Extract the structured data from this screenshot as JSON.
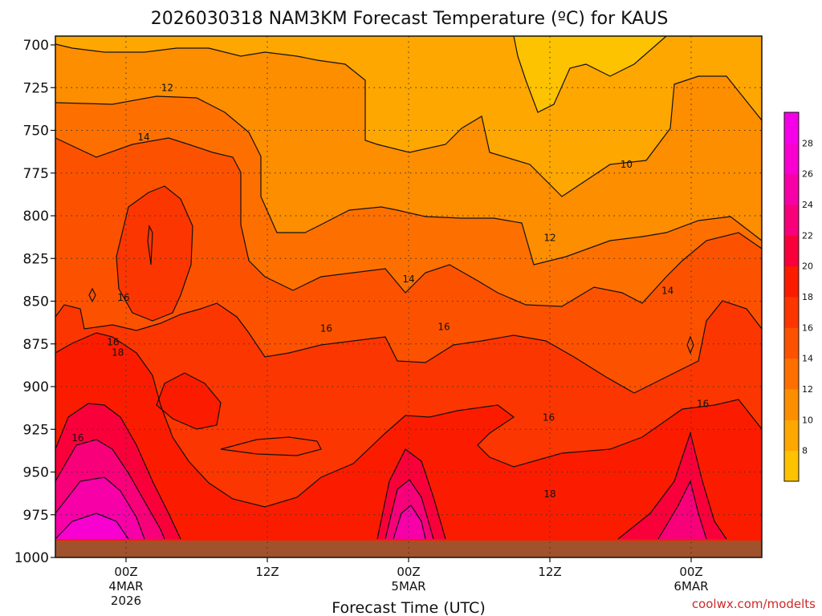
{
  "chart_data": {
    "type": "heatmap",
    "title": "2026030318 NAM3KM Forecast Temperature (ºC) for KAUS",
    "xlabel": "Forecast Time (UTC)",
    "ylabel": "",
    "credit": "coolwx.com/modelts",
    "y_ticks": [
      "700",
      "725",
      "750",
      "775",
      "800",
      "825",
      "850",
      "875",
      "900",
      "925",
      "950",
      "975",
      "1000"
    ],
    "y_range_hpa": [
      700,
      1000
    ],
    "x_range_hours": [
      -6,
      54
    ],
    "x_ticks": [
      {
        "hour": 0,
        "lines": [
          "00Z",
          "4MAR",
          "2026"
        ]
      },
      {
        "hour": 12,
        "lines": [
          "12Z"
        ]
      },
      {
        "hour": 24,
        "lines": [
          "00Z",
          "5MAR"
        ]
      },
      {
        "hour": 36,
        "lines": [
          "12Z"
        ]
      },
      {
        "hour": 48,
        "lines": [
          "00Z",
          "6MAR"
        ]
      }
    ],
    "grid": true,
    "colorbar": {
      "placement": "right",
      "range": [
        6,
        30
      ],
      "ticks": [
        "8",
        "10",
        "12",
        "14",
        "16",
        "18",
        "20",
        "22",
        "24",
        "26",
        "28"
      ],
      "colors": [
        "#fdc200",
        "#fea700",
        "#fd8e00",
        "#fd7000",
        "#fc5200",
        "#fc3600",
        "#fb1c00",
        "#f9003a",
        "#f7007a",
        "#f700a8",
        "#f700d0",
        "#f500e8"
      ]
    },
    "contour_labels": [
      {
        "text": "12",
        "hour": 3.5,
        "hpa": 725
      },
      {
        "text": "14",
        "hour": 1.5,
        "hpa": 754
      },
      {
        "text": "10",
        "hour": 42.5,
        "hpa": 770
      },
      {
        "text": "12",
        "hour": 36,
        "hpa": 813
      },
      {
        "text": "14",
        "hour": 24,
        "hpa": 837
      },
      {
        "text": "14",
        "hour": 46,
        "hpa": 844
      },
      {
        "text": "16",
        "hour": -0.2,
        "hpa": 848
      },
      {
        "text": "16",
        "hour": 17,
        "hpa": 866
      },
      {
        "text": "16",
        "hour": 27,
        "hpa": 865
      },
      {
        "text": "16",
        "hour": -1.1,
        "hpa": 874
      },
      {
        "text": "18",
        "hour": -0.7,
        "hpa": 880
      },
      {
        "text": "16",
        "hour": 49,
        "hpa": 910
      },
      {
        "text": "16",
        "hour": 35.9,
        "hpa": 918
      },
      {
        "text": "16",
        "hour": -4.1,
        "hpa": 930
      },
      {
        "text": "18",
        "hour": 36,
        "hpa": 963
      }
    ],
    "terrain_color": "#a0522d"
  }
}
